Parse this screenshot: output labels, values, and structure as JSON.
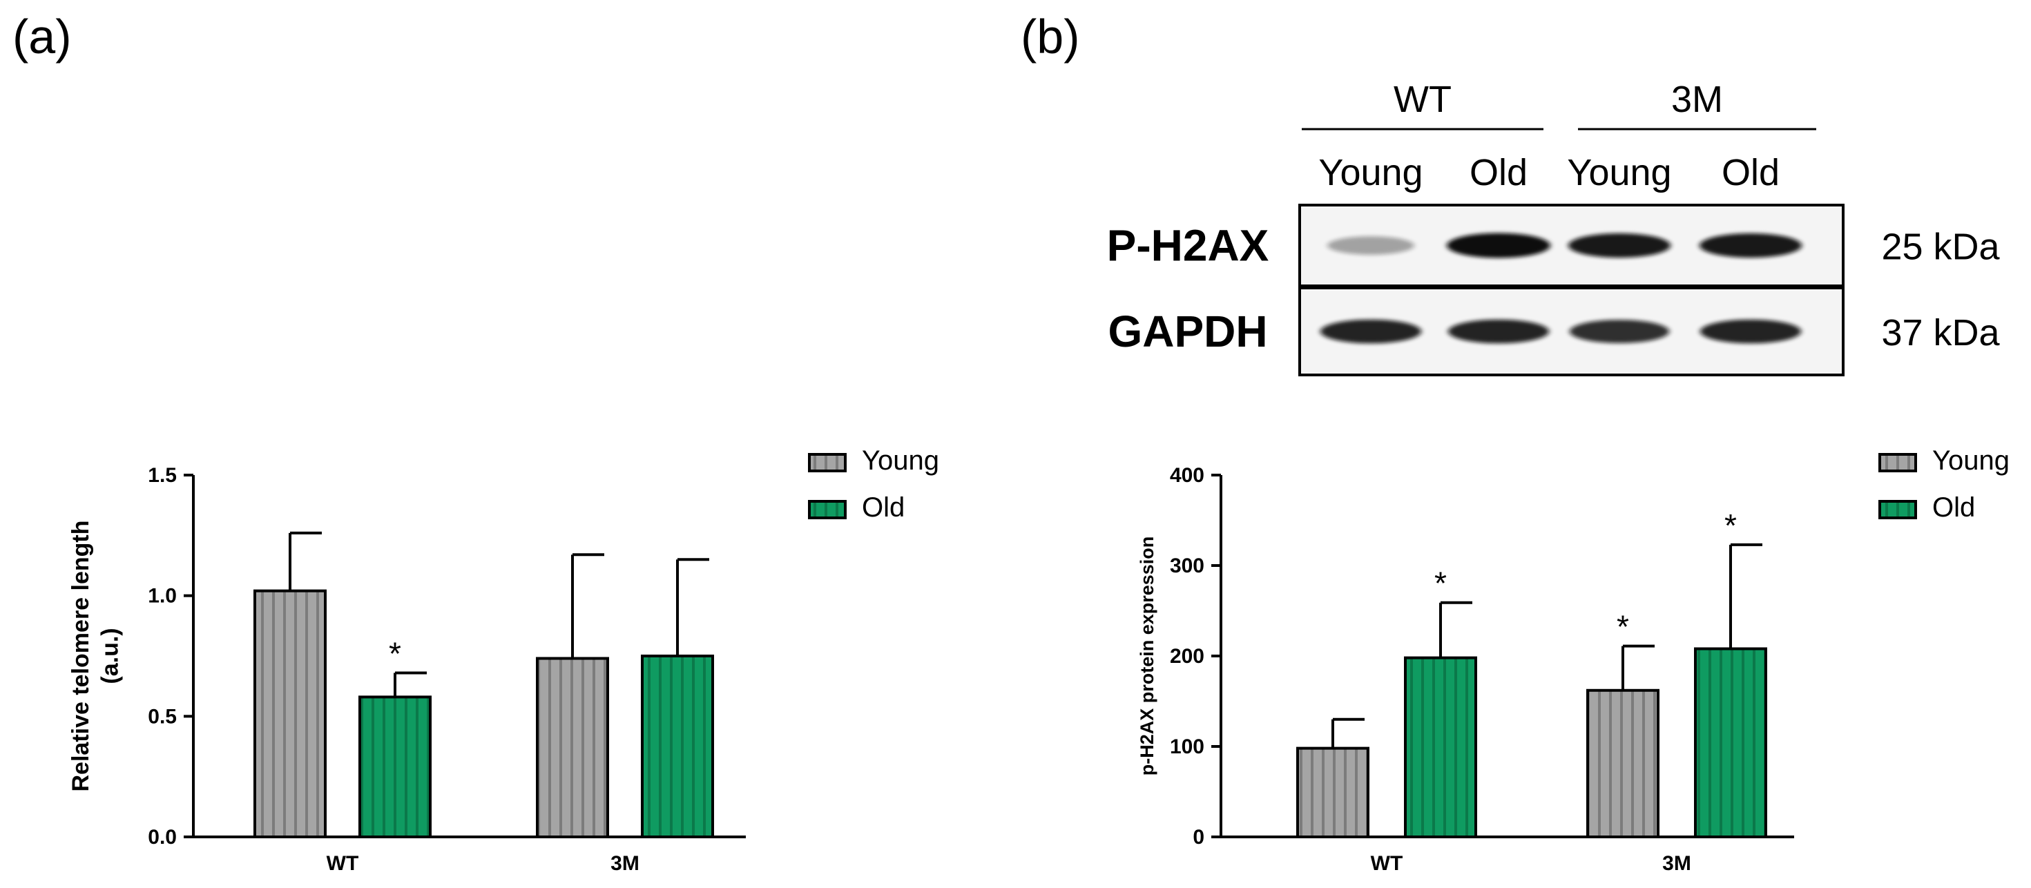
{
  "panels": {
    "a_label": "(a)",
    "b_label": "(b)"
  },
  "blot": {
    "groups": [
      "WT",
      "3M"
    ],
    "lanes": [
      "Young",
      "Old",
      "Young",
      "Old"
    ],
    "proteins": [
      {
        "name": "P-H2AX",
        "size": "25 kDa",
        "band_intensity": [
          0.35,
          1.0,
          0.95,
          0.95
        ]
      },
      {
        "name": "GAPDH",
        "size": "37 kDa",
        "band_intensity": [
          0.9,
          0.9,
          0.85,
          0.9
        ]
      }
    ]
  },
  "colors": {
    "young": "#a5a5a5",
    "old": "#0f9b61",
    "axis": "#000000"
  },
  "chart_data": [
    {
      "type": "bar",
      "categories": [
        "WT",
        "3M"
      ],
      "ylabel": "Relative telomere length\n(a.u.)",
      "ylim": [
        0,
        1.5
      ],
      "yticks": [
        "0.0",
        "0.5",
        "1.0",
        "1.5"
      ],
      "series": [
        {
          "name": "Young",
          "values": [
            1.02,
            0.74
          ],
          "errors": [
            0.24,
            0.43
          ],
          "sig": [
            "",
            ""
          ]
        },
        {
          "name": "Old",
          "values": [
            0.58,
            0.75
          ],
          "errors": [
            0.1,
            0.4
          ],
          "sig": [
            "*",
            ""
          ]
        }
      ]
    },
    {
      "type": "bar",
      "categories": [
        "WT",
        "3M"
      ],
      "ylabel": "p-H2AX protein expression",
      "ylim": [
        0,
        400
      ],
      "yticks": [
        "0",
        "100",
        "200",
        "300",
        "400"
      ],
      "series": [
        {
          "name": "Young",
          "values": [
            98,
            162
          ],
          "errors": [
            32,
            49
          ],
          "sig": [
            "",
            "*"
          ]
        },
        {
          "name": "Old",
          "values": [
            198,
            208
          ],
          "errors": [
            61,
            115
          ],
          "sig": [
            "*",
            "*"
          ]
        }
      ]
    }
  ]
}
